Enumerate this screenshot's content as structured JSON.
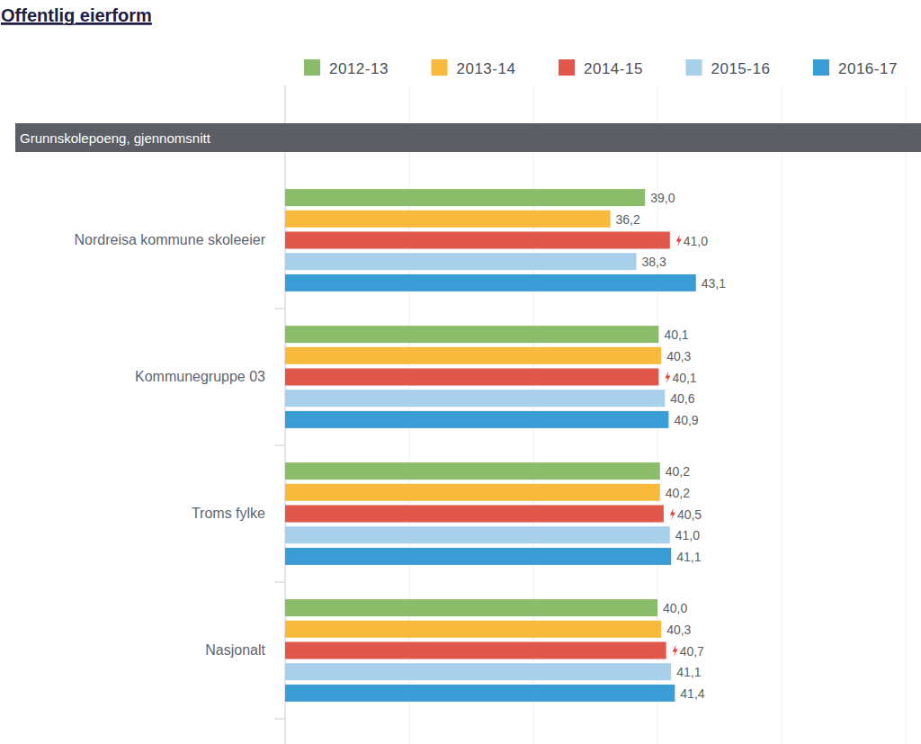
{
  "chart_data": {
    "type": "bar",
    "orientation": "horizontal",
    "title": "Offentlig eierform",
    "subtitle": "Grunnskolepoeng, gjennomsnitt",
    "categories": [
      "Nordreisa kommune skoleeier",
      "Kommunegruppe 03",
      "Troms fylke",
      "Nasjonalt"
    ],
    "series": [
      {
        "name": "2012-13",
        "color": "#8bbc6a",
        "values": [
          39.0,
          40.1,
          40.2,
          40.0
        ],
        "value_labels": [
          "39,0",
          "40,1",
          "40,2",
          "40,0"
        ]
      },
      {
        "name": "2013-14",
        "color": "#f8b93c",
        "values": [
          36.2,
          40.3,
          40.2,
          40.3
        ],
        "value_labels": [
          "36,2",
          "40,3",
          "40,2",
          "40,3"
        ]
      },
      {
        "name": "2014-15",
        "color": "#e2574c",
        "marker": "lightning",
        "values": [
          41.0,
          40.1,
          40.5,
          40.7
        ],
        "value_labels": [
          "41,0",
          "40,1",
          "40,5",
          "40,7"
        ]
      },
      {
        "name": "2015-16",
        "color": "#a9d0ea",
        "values": [
          38.3,
          40.6,
          41.0,
          41.1
        ],
        "value_labels": [
          "38,3",
          "40,6",
          "41,0",
          "41,1"
        ]
      },
      {
        "name": "2016-17",
        "color": "#3b9dd6",
        "values": [
          43.1,
          40.9,
          41.1,
          41.4
        ],
        "value_labels": [
          "43,1",
          "40,9",
          "41,1",
          "41,4"
        ]
      }
    ],
    "xlim": [
      10,
      60
    ],
    "xticks": [
      10,
      20,
      30,
      40,
      50,
      60
    ],
    "grid": true,
    "legend": "top",
    "data_labels": true,
    "tick_labels": false
  }
}
